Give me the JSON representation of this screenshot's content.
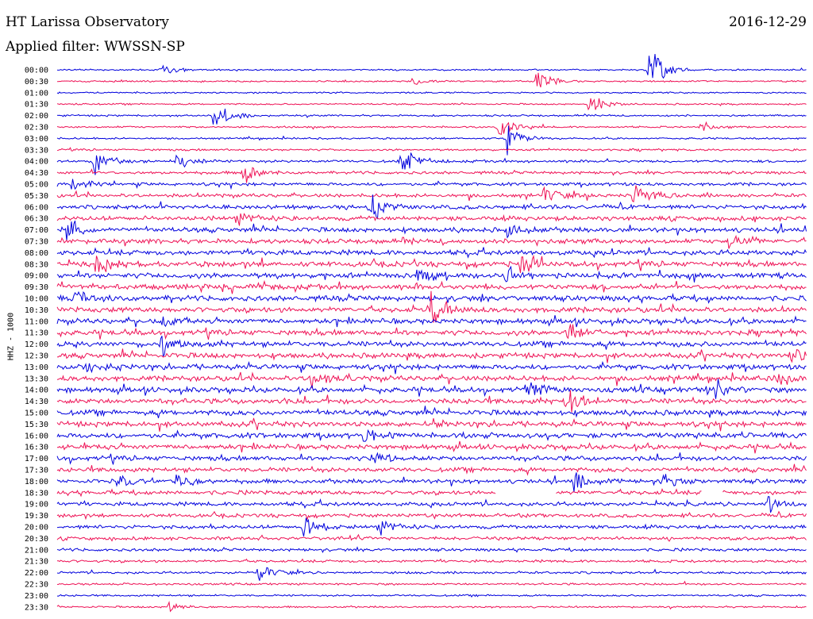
{
  "header": {
    "station": "HT Larissa Observatory",
    "date": "2016-12-29",
    "filter": "Applied filter: WWSSN-SP"
  },
  "chart_data": {
    "type": "line",
    "title": "HT Larissa Observatory",
    "ylabel": "HHZ - 1000",
    "rows": [
      "00:00",
      "00:30",
      "01:00",
      "01:30",
      "02:00",
      "02:30",
      "03:00",
      "03:30",
      "04:00",
      "04:30",
      "05:00",
      "05:30",
      "06:00",
      "06:30",
      "07:00",
      "07:30",
      "08:00",
      "08:30",
      "09:00",
      "09:30",
      "10:00",
      "10:30",
      "11:00",
      "11:30",
      "12:00",
      "12:30",
      "13:00",
      "13:30",
      "14:00",
      "14:30",
      "15:00",
      "15:30",
      "16:00",
      "16:30",
      "17:00",
      "17:30",
      "18:00",
      "18:30",
      "19:00",
      "19:30",
      "20:00",
      "20:30",
      "21:00",
      "21:30",
      "22:00",
      "22:30",
      "23:00",
      "23:30"
    ],
    "colors": [
      "#0000dd",
      "#ee1155"
    ],
    "noise_level": [
      0.3,
      0.3,
      0.3,
      0.3,
      0.35,
      0.35,
      0.35,
      0.4,
      0.5,
      0.55,
      0.6,
      0.7,
      0.8,
      0.85,
      0.9,
      0.9,
      0.95,
      1,
      1,
      1,
      1,
      1,
      1,
      1,
      1,
      1,
      1,
      1,
      1,
      1,
      1,
      1,
      1,
      0.95,
      0.9,
      0.85,
      0.8,
      0.8,
      0.75,
      0.7,
      0.7,
      0.65,
      0.55,
      0.5,
      0.45,
      0.4,
      0.35,
      0.35
    ],
    "events": [
      {
        "row": 0,
        "t": 0.14,
        "amp": 10
      },
      {
        "row": 0,
        "t": 0.79,
        "amp": 38
      },
      {
        "row": 1,
        "t": 0.47,
        "amp": 8
      },
      {
        "row": 1,
        "t": 0.64,
        "amp": 22
      },
      {
        "row": 3,
        "t": 0.71,
        "amp": 20
      },
      {
        "row": 4,
        "t": 0.21,
        "amp": 22
      },
      {
        "row": 5,
        "t": 0.59,
        "amp": 18
      },
      {
        "row": 5,
        "t": 0.86,
        "amp": 8
      },
      {
        "row": 6,
        "t": 0.6,
        "amp": 28
      },
      {
        "row": 8,
        "t": 0.05,
        "amp": 22
      },
      {
        "row": 8,
        "t": 0.46,
        "amp": 30
      },
      {
        "row": 8,
        "t": 0.16,
        "amp": 12
      },
      {
        "row": 9,
        "t": 0.25,
        "amp": 18
      },
      {
        "row": 10,
        "t": 0.02,
        "amp": 14
      },
      {
        "row": 11,
        "t": 0.65,
        "amp": 14
      },
      {
        "row": 11,
        "t": 0.77,
        "amp": 26
      },
      {
        "row": 12,
        "t": 0.42,
        "amp": 20
      },
      {
        "row": 13,
        "t": 0.24,
        "amp": 14
      },
      {
        "row": 14,
        "t": 0.01,
        "amp": 16
      },
      {
        "row": 14,
        "t": 0.6,
        "amp": 16
      },
      {
        "row": 15,
        "t": 0.89,
        "amp": 14
      },
      {
        "row": 17,
        "t": 0.05,
        "amp": 18
      },
      {
        "row": 17,
        "t": 0.62,
        "amp": 16
      },
      {
        "row": 18,
        "t": 0.48,
        "amp": 18
      },
      {
        "row": 18,
        "t": 0.6,
        "amp": 16
      },
      {
        "row": 20,
        "t": 0.02,
        "amp": 14
      },
      {
        "row": 21,
        "t": 0.5,
        "amp": 22
      },
      {
        "row": 22,
        "t": 0.14,
        "amp": 14
      },
      {
        "row": 23,
        "t": 0.68,
        "amp": 16
      },
      {
        "row": 24,
        "t": 0.14,
        "amp": 16
      },
      {
        "row": 25,
        "t": 0.98,
        "amp": 14
      },
      {
        "row": 26,
        "t": 0.03,
        "amp": 16
      },
      {
        "row": 27,
        "t": 0.34,
        "amp": 14
      },
      {
        "row": 27,
        "t": 0.96,
        "amp": 14
      },
      {
        "row": 28,
        "t": 0.63,
        "amp": 16
      },
      {
        "row": 28,
        "t": 0.88,
        "amp": 18
      },
      {
        "row": 29,
        "t": 0.68,
        "amp": 22
      },
      {
        "row": 32,
        "t": 0.41,
        "amp": 12
      },
      {
        "row": 34,
        "t": 0.42,
        "amp": 10
      },
      {
        "row": 36,
        "t": 0.08,
        "amp": 14
      },
      {
        "row": 36,
        "t": 0.16,
        "amp": 14
      },
      {
        "row": 36,
        "t": 0.69,
        "amp": 12
      },
      {
        "row": 36,
        "t": 0.81,
        "amp": 12
      },
      {
        "row": 38,
        "t": 0.95,
        "amp": 14
      },
      {
        "row": 40,
        "t": 0.33,
        "amp": 16
      },
      {
        "row": 40,
        "t": 0.43,
        "amp": 16
      },
      {
        "row": 44,
        "t": 0.27,
        "amp": 16
      },
      {
        "row": 47,
        "t": 0.15,
        "amp": 8
      }
    ],
    "gaps": [
      {
        "row": 37,
        "t0": 0.585,
        "t1": 0.665
      },
      {
        "row": 37,
        "t0": 0.861,
        "t1": 0.887
      }
    ]
  }
}
